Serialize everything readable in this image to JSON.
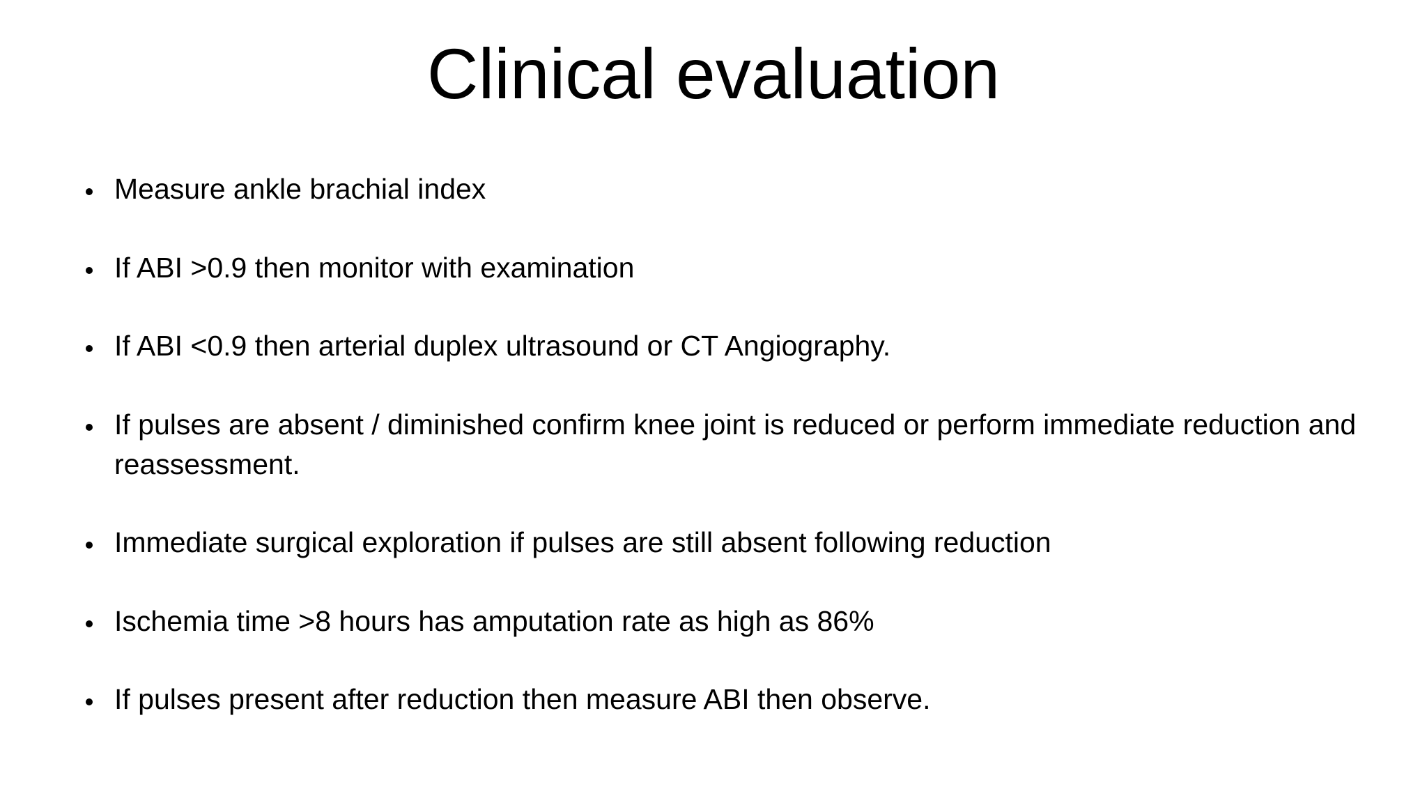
{
  "slide": {
    "title": "Clinical evaluation",
    "bullets": [
      "Measure ankle brachial index",
      "If ABI >0.9 then monitor with examination",
      "If ABI <0.9 then arterial duplex ultrasound or CT Angiography.",
      "If pulses are absent / diminished confirm knee joint is reduced or perform immediate reduction and reassessment.",
      "Immediate surgical exploration if pulses are still absent following reduction",
      "Ischemia time >8 hours has amputation rate as high as 86%",
      "If pulses present after reduction then measure ABI then observe."
    ],
    "colors": {
      "background": "#ffffff",
      "text": "#000000"
    }
  }
}
